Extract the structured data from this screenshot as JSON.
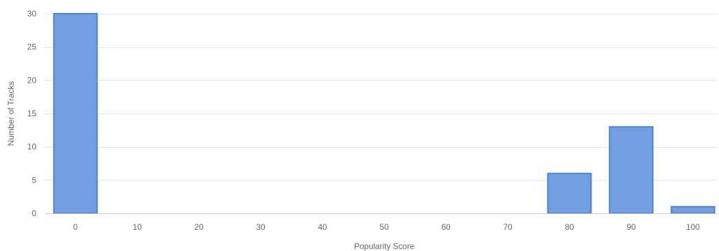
{
  "chart_data": {
    "type": "bar",
    "title": "",
    "xlabel": "Popularity Score",
    "ylabel": "Number of Tracks",
    "categories": [
      "0",
      "10",
      "20",
      "30",
      "40",
      "50",
      "60",
      "70",
      "80",
      "90",
      "100"
    ],
    "series": [
      {
        "values": [
          30,
          0,
          0,
          0,
          0,
          0,
          0,
          0,
          6,
          13,
          1
        ]
      }
    ],
    "ylim": [
      0,
      30
    ],
    "yticks": [
      0,
      5,
      10,
      15,
      20,
      25,
      30
    ],
    "grid": true,
    "legend": "none",
    "colors": {
      "bar_fill": "#729fdf",
      "bar_stroke": "#4f82d1",
      "grid": "#e6e6e6",
      "text": "#666666"
    }
  }
}
